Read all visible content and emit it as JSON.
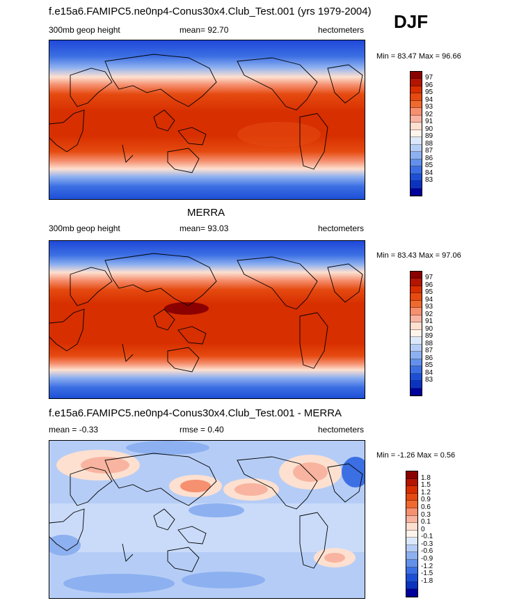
{
  "header": {
    "title": "f.e15a6.FAMIPC5.ne0np4-Conus30x4.Club_Test.001 (yrs 1979-2004)",
    "season": "DJF"
  },
  "panels": [
    {
      "panel_title": "",
      "left_label": "300mb geop height",
      "center_label": "mean=  92.70",
      "right_label": "hectometers",
      "range": "Min =  83.47 Max =  96.66",
      "colorbar": {
        "labels": [
          "97",
          "96",
          "95",
          "94",
          "93",
          "92",
          "91",
          "90",
          "89",
          "88",
          "87",
          "86",
          "85",
          "84",
          "83"
        ],
        "colors": [
          "#8b0000",
          "#b31500",
          "#d72f00",
          "#e54a10",
          "#f06a30",
          "#f59070",
          "#f8b4a0",
          "#fde0d0",
          "#fff4ec",
          "#dbe8fb",
          "#b5cdf6",
          "#8db0f0",
          "#6390ea",
          "#3c6fe3",
          "#1d4fd6",
          "#0c33c0",
          "#00009c"
        ]
      }
    },
    {
      "panel_title": "MERRA",
      "left_label": "300mb geop height",
      "center_label": "mean=  93.03",
      "right_label": "hectometers",
      "range": "Min =  83.43 Max =  97.06",
      "colorbar": {
        "labels": [
          "97",
          "96",
          "95",
          "94",
          "93",
          "92",
          "91",
          "90",
          "89",
          "88",
          "87",
          "86",
          "85",
          "84",
          "83"
        ],
        "colors": [
          "#8b0000",
          "#b31500",
          "#d72f00",
          "#e54a10",
          "#f06a30",
          "#f59070",
          "#f8b4a0",
          "#fde0d0",
          "#fff4ec",
          "#dbe8fb",
          "#b5cdf6",
          "#8db0f0",
          "#6390ea",
          "#3c6fe3",
          "#1d4fd6",
          "#0c33c0",
          "#00009c"
        ]
      }
    },
    {
      "panel_title": "f.e15a6.FAMIPC5.ne0np4-Conus30x4.Club_Test.001 - MERRA",
      "left_label": "mean =  -0.33",
      "center_label": "rmse =   0.40",
      "right_label": "hectometers",
      "range": "Min =  -1.26 Max =   0.56",
      "colorbar": {
        "labels": [
          "1.8",
          "1.5",
          "1.2",
          "0.9",
          "0.6",
          "0.3",
          "0.1",
          "0",
          "-0.1",
          "-0.3",
          "-0.6",
          "-0.9",
          "-1.2",
          "-1.5",
          "-1.8"
        ],
        "colors": [
          "#8b0000",
          "#b31500",
          "#d72f00",
          "#e54a10",
          "#f06a30",
          "#f59070",
          "#f8b4a0",
          "#fde0d0",
          "#fff4ec",
          "#dbe8fb",
          "#b5cdf6",
          "#8db0f0",
          "#6390ea",
          "#3c6fe3",
          "#1d4fd6",
          "#0c33c0",
          "#00009c"
        ]
      }
    }
  ]
}
